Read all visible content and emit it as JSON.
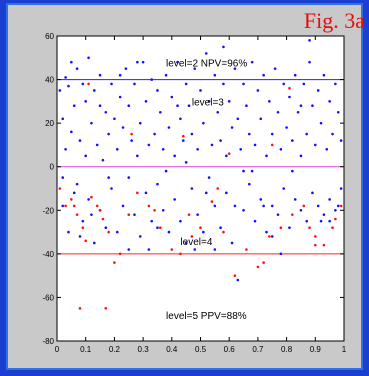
{
  "figure": {
    "label": "Fig. 3a",
    "background": "#c9c9c9",
    "frame_color": "#1b3fd0",
    "plot_bg": "#ffffff"
  },
  "chart_data": {
    "type": "scatter",
    "xlim": [
      0,
      1
    ],
    "ylim": [
      -80,
      60
    ],
    "xticks": [
      0,
      0.1,
      0.2,
      0.3,
      0.4,
      0.5,
      0.6,
      0.7,
      0.8,
      0.9,
      1
    ],
    "xtick_labels": [
      "0",
      "0.1",
      "0.2",
      "0.3",
      "0.4",
      "0.5",
      "0.6",
      "0.7",
      "0.8",
      "0.9",
      "1"
    ],
    "yticks": [
      -80,
      -60,
      -40,
      -20,
      0,
      20,
      40,
      60
    ],
    "ytick_labels": [
      "-80",
      "-60",
      "-40",
      "-20",
      "0",
      "20",
      "40",
      "60"
    ],
    "grid": false,
    "reference_lines": [
      {
        "y": 40,
        "color": "#2020ff"
      },
      {
        "y": 0,
        "color": "#e040e0"
      },
      {
        "y": -40,
        "color": "#ff2020"
      }
    ],
    "annotations": [
      {
        "text": "level=2 NPV=96%",
        "x": 0.38,
        "y": 46
      },
      {
        "text": "level=3",
        "x": 0.47,
        "y": 28
      },
      {
        "text": "level=4",
        "x": 0.43,
        "y": -36
      },
      {
        "text": "level=5 PPV=88%",
        "x": 0.38,
        "y": -70
      }
    ],
    "series": [
      {
        "color": "#1010ff",
        "points": [
          [
            0.01,
            35
          ],
          [
            0.02,
            -18
          ],
          [
            0.02,
            22
          ],
          [
            0.03,
            41
          ],
          [
            0.03,
            8
          ],
          [
            0.04,
            -30
          ],
          [
            0.04,
            37
          ],
          [
            0.05,
            16
          ],
          [
            0.06,
            -12
          ],
          [
            0.06,
            28
          ],
          [
            0.07,
            45
          ],
          [
            0.07,
            -8
          ],
          [
            0.08,
            12
          ],
          [
            0.09,
            -25
          ],
          [
            0.09,
            38
          ],
          [
            0.1,
            30
          ],
          [
            0.1,
            5
          ],
          [
            0.11,
            -15
          ],
          [
            0.11,
            50
          ],
          [
            0.12,
            20
          ],
          [
            0.13,
            -35
          ],
          [
            0.13,
            35
          ],
          [
            0.14,
            10
          ],
          [
            0.15,
            -20
          ],
          [
            0.15,
            42
          ],
          [
            0.16,
            3
          ],
          [
            0.17,
            25
          ],
          [
            0.17,
            -28
          ],
          [
            0.18,
            15
          ],
          [
            0.19,
            38
          ],
          [
            0.19,
            -10
          ],
          [
            0.2,
            22
          ],
          [
            0.21,
            -30
          ],
          [
            0.21,
            8
          ],
          [
            0.22,
            32
          ],
          [
            0.23,
            -18
          ],
          [
            0.23,
            18
          ],
          [
            0.24,
            45
          ],
          [
            0.25,
            -5
          ],
          [
            0.25,
            28
          ],
          [
            0.26,
            12
          ],
          [
            0.27,
            -22
          ],
          [
            0.27,
            38
          ],
          [
            0.28,
            5
          ],
          [
            0.29,
            -32
          ],
          [
            0.29,
            20
          ],
          [
            0.3,
            48
          ],
          [
            0.31,
            -12
          ],
          [
            0.31,
            30
          ],
          [
            0.32,
            10
          ],
          [
            0.33,
            -25
          ],
          [
            0.33,
            40
          ],
          [
            0.34,
            15
          ],
          [
            0.35,
            -8
          ],
          [
            0.35,
            35
          ],
          [
            0.36,
            25
          ],
          [
            0.37,
            -20
          ],
          [
            0.37,
            8
          ],
          [
            0.38,
            42
          ],
          [
            0.39,
            -30
          ],
          [
            0.39,
            18
          ],
          [
            0.4,
            32
          ],
          [
            0.41,
            -15
          ],
          [
            0.41,
            5
          ],
          [
            0.42,
            48
          ],
          [
            0.43,
            -25
          ],
          [
            0.43,
            22
          ],
          [
            0.44,
            12
          ],
          [
            0.45,
            -35
          ],
          [
            0.45,
            38
          ],
          [
            0.46,
            28
          ],
          [
            0.47,
            -10
          ],
          [
            0.47,
            15
          ],
          [
            0.48,
            45
          ],
          [
            0.49,
            -22
          ],
          [
            0.49,
            8
          ],
          [
            0.5,
            35
          ],
          [
            0.51,
            -30
          ],
          [
            0.51,
            20
          ],
          [
            0.52,
            52
          ],
          [
            0.53,
            -5
          ],
          [
            0.53,
            30
          ],
          [
            0.54,
            10
          ],
          [
            0.55,
            -18
          ],
          [
            0.55,
            42
          ],
          [
            0.56,
            25
          ],
          [
            0.57,
            -28
          ],
          [
            0.57,
            12
          ],
          [
            0.58,
            38
          ],
          [
            0.59,
            -12
          ],
          [
            0.59,
            5
          ],
          [
            0.6,
            30
          ],
          [
            0.61,
            -35
          ],
          [
            0.61,
            18
          ],
          [
            0.62,
            45
          ],
          [
            0.63,
            -52
          ],
          [
            0.63,
            22
          ],
          [
            0.64,
            8
          ],
          [
            0.65,
            -20
          ],
          [
            0.65,
            38
          ],
          [
            0.66,
            28
          ],
          [
            0.67,
            -8
          ],
          [
            0.67,
            15
          ],
          [
            0.68,
            48
          ],
          [
            0.69,
            -25
          ],
          [
            0.69,
            10
          ],
          [
            0.7,
            35
          ],
          [
            0.71,
            -15
          ],
          [
            0.71,
            22
          ],
          [
            0.72,
            42
          ],
          [
            0.73,
            -30
          ],
          [
            0.73,
            5
          ],
          [
            0.74,
            30
          ],
          [
            0.75,
            -18
          ],
          [
            0.75,
            15
          ],
          [
            0.76,
            45
          ],
          [
            0.77,
            -22
          ],
          [
            0.77,
            25
          ],
          [
            0.78,
            8
          ],
          [
            0.79,
            -10
          ],
          [
            0.79,
            38
          ],
          [
            0.8,
            18
          ],
          [
            0.81,
            -28
          ],
          [
            0.81,
            32
          ],
          [
            0.82,
            12
          ],
          [
            0.83,
            -15
          ],
          [
            0.83,
            42
          ],
          [
            0.84,
            25
          ],
          [
            0.85,
            -20
          ],
          [
            0.85,
            5
          ],
          [
            0.86,
            38
          ],
          [
            0.87,
            -25
          ],
          [
            0.87,
            15
          ],
          [
            0.88,
            48
          ],
          [
            0.89,
            -12
          ],
          [
            0.89,
            28
          ],
          [
            0.9,
            10
          ],
          [
            0.91,
            -18
          ],
          [
            0.91,
            35
          ],
          [
            0.92,
            20
          ],
          [
            0.93,
            -22
          ],
          [
            0.93,
            42
          ],
          [
            0.94,
            8
          ],
          [
            0.95,
            -15
          ],
          [
            0.95,
            30
          ],
          [
            0.96,
            15
          ],
          [
            0.97,
            -20
          ],
          [
            0.97,
            38
          ],
          [
            0.98,
            25
          ],
          [
            0.99,
            -10
          ],
          [
            0.99,
            12
          ],
          [
            0.08,
            -32
          ],
          [
            0.18,
            -5
          ],
          [
            0.28,
            48
          ],
          [
            0.38,
            -2
          ],
          [
            0.48,
            -38
          ],
          [
            0.58,
            55
          ],
          [
            0.68,
            -2
          ],
          [
            0.78,
            -40
          ],
          [
            0.88,
            58
          ],
          [
            0.98,
            -18
          ],
          [
            0.05,
            48
          ],
          [
            0.15,
            28
          ],
          [
            0.25,
            -38
          ],
          [
            0.35,
            -28
          ],
          [
            0.45,
            2
          ],
          [
            0.55,
            -38
          ],
          [
            0.65,
            -2
          ],
          [
            0.75,
            -32
          ],
          [
            0.85,
            28
          ],
          [
            0.95,
            -25
          ],
          [
            0.12,
            -22
          ],
          [
            0.22,
            42
          ],
          [
            0.32,
            -38
          ],
          [
            0.42,
            28
          ],
          [
            0.52,
            -12
          ],
          [
            0.62,
            -18
          ],
          [
            0.72,
            -18
          ],
          [
            0.82,
            -2
          ],
          [
            0.92,
            -25
          ],
          [
            0.02,
            -5
          ]
        ]
      },
      {
        "color": "#ff1010",
        "points": [
          [
            0.01,
            -10
          ],
          [
            0.03,
            -18
          ],
          [
            0.05,
            -15
          ],
          [
            0.07,
            -22
          ],
          [
            0.09,
            -28
          ],
          [
            0.1,
            -34
          ],
          [
            0.12,
            -14
          ],
          [
            0.14,
            -18
          ],
          [
            0.16,
            -24
          ],
          [
            0.18,
            -30
          ],
          [
            0.2,
            -44
          ],
          [
            0.22,
            -40
          ],
          [
            0.08,
            -65
          ],
          [
            0.17,
            -65
          ],
          [
            0.25,
            -22
          ],
          [
            0.28,
            -12
          ],
          [
            0.32,
            -18
          ],
          [
            0.36,
            -28
          ],
          [
            0.4,
            -38
          ],
          [
            0.43,
            -40
          ],
          [
            0.46,
            -22
          ],
          [
            0.5,
            -28
          ],
          [
            0.54,
            -16
          ],
          [
            0.58,
            -30
          ],
          [
            0.62,
            -50
          ],
          [
            0.66,
            -38
          ],
          [
            0.7,
            -46
          ],
          [
            0.74,
            -32
          ],
          [
            0.78,
            -28
          ],
          [
            0.82,
            -22
          ],
          [
            0.86,
            -18
          ],
          [
            0.9,
            -32
          ],
          [
            0.93,
            -36
          ],
          [
            0.96,
            -28
          ],
          [
            0.99,
            -18
          ],
          [
            0.11,
            38
          ],
          [
            0.26,
            15
          ],
          [
            0.44,
            14
          ],
          [
            0.6,
            6
          ],
          [
            0.75,
            10
          ],
          [
            0.81,
            36
          ],
          [
            0.9,
            -36
          ],
          [
            0.15,
            -20
          ],
          [
            0.34,
            -20
          ],
          [
            0.47,
            -32
          ],
          [
            0.56,
            -10
          ],
          [
            0.72,
            -44
          ],
          [
            0.88,
            -28
          ],
          [
            0.97,
            -24
          ],
          [
            0.06,
            -18
          ]
        ]
      }
    ]
  }
}
